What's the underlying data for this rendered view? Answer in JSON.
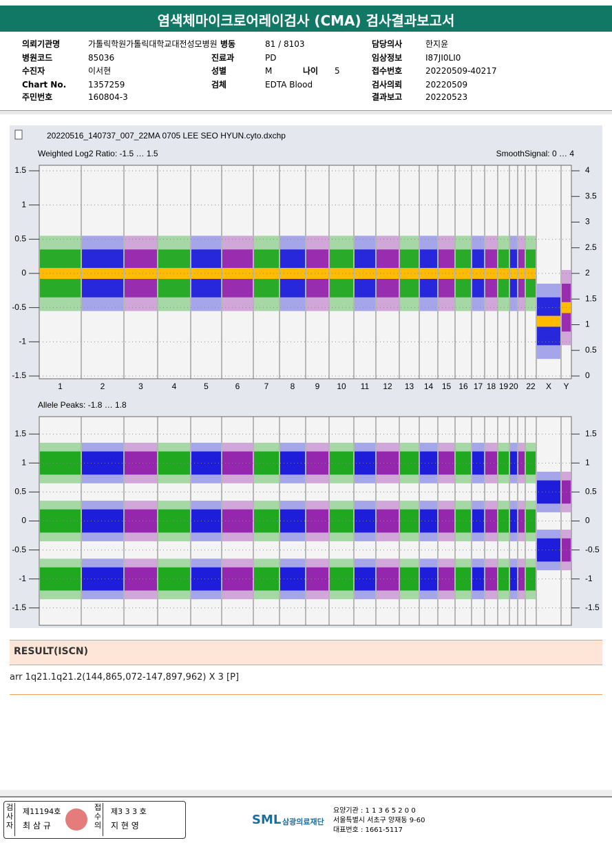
{
  "header": {
    "title": "염색체마이크로어레이검사 (CMA) 검사결과보고서"
  },
  "info": {
    "rows": [
      {
        "left": {
          "label": "의뢰기관명",
          "value": "가톨릭학원가톨릭대학교대전성모병원"
        },
        "mid": {
          "label": "병동",
          "value": "81 / 8103"
        },
        "right": {
          "label": "담당의사",
          "value": "한지윤"
        }
      },
      {
        "left": {
          "label": "병원코드",
          "value": "85036"
        },
        "mid": {
          "label": "진료과",
          "value": "PD"
        },
        "right": {
          "label": "임상정보",
          "value": "I87JI0LI0"
        }
      },
      {
        "left": {
          "label": "수진자",
          "value": "이서현"
        },
        "mid": {
          "label": "성별",
          "value": "M",
          "label2": "나이",
          "value2": "5"
        },
        "right": {
          "label": "접수번호",
          "value": "20220509-40217"
        }
      },
      {
        "left": {
          "label": "Chart No.",
          "value": "1357259"
        },
        "mid": {
          "label": "검체",
          "value": "EDTA Blood"
        },
        "right": {
          "label": "검사의뢰",
          "value": "20220509"
        }
      },
      {
        "left": {
          "label": "주민번호",
          "value": "160804-3"
        },
        "right": {
          "label": "결과보고",
          "value": "20220523"
        }
      }
    ]
  },
  "plot": {
    "file": "20220516_140737_007_22MA 0705 LEE SEO HYUN.cyto.dxchp",
    "categories": [
      "1",
      "2",
      "3",
      "4",
      "5",
      "6",
      "7",
      "8",
      "9",
      "10",
      "11",
      "12",
      "13",
      "14",
      "15",
      "16",
      "17",
      "18",
      "19",
      "20",
      null,
      "22",
      "X",
      "Y"
    ],
    "panels": [
      {
        "title": "Weighted Log2 Ratio: -1.5 … 1.5",
        "right_title": "SmoothSignal: 0 … 4",
        "ylim": [
          -1.5,
          1.5
        ],
        "yticks": [
          1.5,
          1,
          0.5,
          0,
          -0.5,
          -1,
          -1.5
        ],
        "y2lim": [
          0,
          4
        ],
        "y2ticks": [
          4,
          3.5,
          3,
          2.5,
          2,
          1.5,
          1,
          0.5,
          0
        ]
      },
      {
        "title": "Allele Peaks: -1.8 … 1.8",
        "ylim": [
          -1.8,
          1.8
        ],
        "yticks": [
          1.5,
          1,
          0.5,
          0,
          -0.5,
          -1,
          -1.5
        ],
        "y2lim": [
          -1.8,
          1.8
        ],
        "y2ticks": [
          1.5,
          1,
          0.5,
          0,
          -0.5,
          -1,
          -1.5
        ]
      }
    ]
  },
  "result": {
    "heading": "RESULT(ISCN)",
    "text": "arr 1q21.1q21.2(144,865,072-147,897,962) X 3 [P]"
  },
  "footer": {
    "signers": [
      {
        "role": "검사자",
        "number": "제11194호",
        "name": "최 삼 규"
      },
      {
        "role": "접수의",
        "number": "제3 3 3 호",
        "name": "지 현 영"
      }
    ],
    "logo": "SML",
    "org": "삼광의료재단",
    "lines": [
      "요양기관 : 1 1 3 6 5 2 0 0",
      "서울특별시 서초구 양재동 9-60",
      "대표번호 : 1661-5117"
    ]
  }
}
